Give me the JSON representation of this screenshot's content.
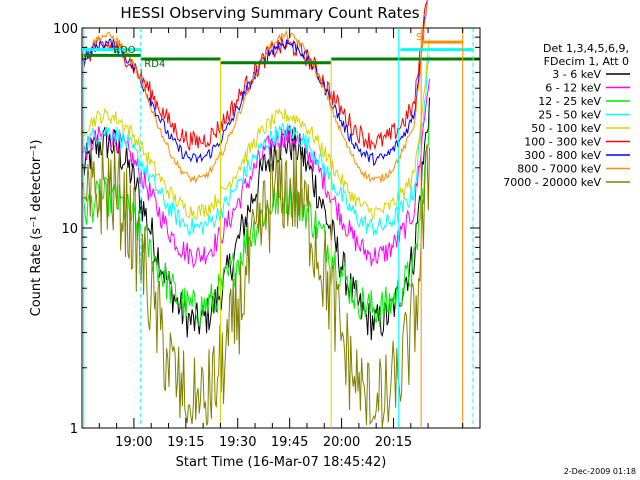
{
  "chart_data": {
    "type": "line",
    "title": "HESSI Observing Summary Count Rates",
    "xlabel": "Start Time (16-Mar-07 18:45:42)",
    "ylabel": "Count Rate (s⁻¹ detector⁻¹)",
    "y_scale": "log",
    "ylim": [
      1,
      100
    ],
    "xlim_minutes": [
      -15,
      100
    ],
    "y_ticks": [
      {
        "value": 1,
        "label": "1"
      },
      {
        "value": 10,
        "label": "10"
      },
      {
        "value": 100,
        "label": "100"
      }
    ],
    "x_ticks": [
      {
        "value": 0,
        "label": "19:00"
      },
      {
        "value": 15,
        "label": "19:15"
      },
      {
        "value": 30,
        "label": "19:30"
      },
      {
        "value": 45,
        "label": "19:45"
      },
      {
        "value": 60,
        "label": "20:00"
      },
      {
        "value": 75,
        "label": "20:15"
      }
    ],
    "legend": {
      "placement": "right",
      "header": [
        "Det 1,3,4,5,6,9,",
        "FDecim 1, Att 0"
      ]
    },
    "series": [
      {
        "name": "3 - 6 keV",
        "color": "#000000",
        "base": 9.5,
        "amp": 0.45,
        "min_level": 2.2,
        "noise": 0.1
      },
      {
        "name": "6 - 12 keV",
        "color": "#ff00ff",
        "base": 14.5,
        "amp": 0.3,
        "min_level": 0,
        "noise": 0.06
      },
      {
        "name": "12 - 25 keV",
        "color": "#00ee00",
        "base": 7.5,
        "amp": 0.28,
        "min_level": 0,
        "noise": 0.1
      },
      {
        "name": "25 - 50 keV",
        "color": "#00ffff",
        "base": 17.5,
        "amp": 0.24,
        "min_level": 0,
        "noise": 0.05
      },
      {
        "name": "50 - 100 keV",
        "color": "#d4d400",
        "base": 21,
        "amp": 0.24,
        "min_level": 0,
        "noise": 0.04
      },
      {
        "name": "100 - 300 keV",
        "color": "#ff0000",
        "base": 47,
        "amp": 0.24,
        "min_level": 0,
        "noise": 0.05
      },
      {
        "name": "300 - 800 keV",
        "color": "#0000ff",
        "base": 43,
        "amp": 0.29,
        "min_level": 0,
        "noise": 0.03
      },
      {
        "name": "800 - 7000 keV",
        "color": "#ff8c00",
        "base": 40,
        "amp": 0.36,
        "min_level": 0,
        "noise": 0.02
      },
      {
        "name": "7000 - 20000 keV",
        "color": "#808000",
        "base": 4.5,
        "amp": 0.55,
        "min_level": 1.0,
        "noise": 0.25
      }
    ],
    "annotations": [
      {
        "text": "RDO",
        "color": "#006400"
      },
      {
        "text": "RD4",
        "color": "#006400"
      },
      {
        "text": "S",
        "color": "#ff8c00"
      }
    ],
    "colors": {
      "attenuator": "#008000",
      "night": "#00ffff",
      "saa": "#ff8c00",
      "flare": "#d4d400"
    }
  },
  "footer": {
    "date": "2-Dec-2009 01:18"
  }
}
